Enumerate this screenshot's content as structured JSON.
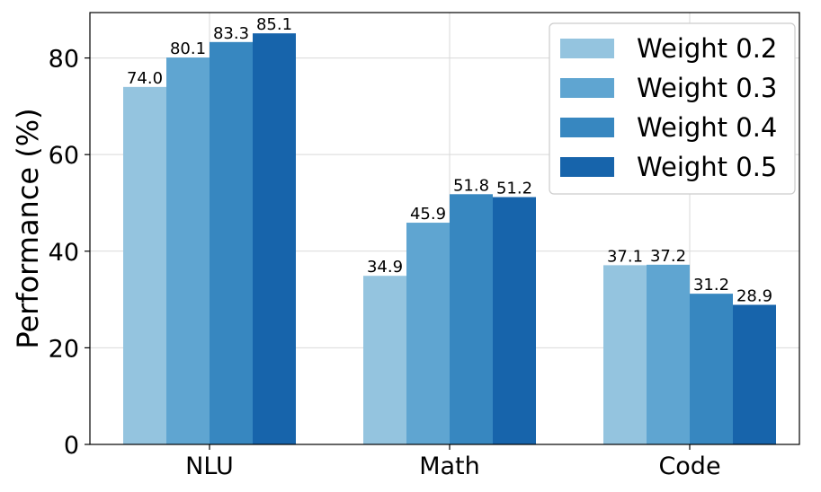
{
  "chart_data": {
    "type": "bar",
    "title": "",
    "xlabel": "",
    "ylabel": "Performance (%)",
    "categories": [
      "NLU",
      "Math",
      "Code"
    ],
    "series": [
      {
        "name": "Weight 0.2",
        "color": "#94c4df",
        "values": [
          74.0,
          34.9,
          37.1
        ],
        "labels": [
          "74.0",
          "34.9",
          "37.1"
        ]
      },
      {
        "name": "Weight 0.3",
        "color": "#5fa5d1",
        "values": [
          80.1,
          45.9,
          37.2
        ],
        "labels": [
          "80.1",
          "45.9",
          "37.2"
        ]
      },
      {
        "name": "Weight 0.4",
        "color": "#3787c0",
        "values": [
          83.3,
          51.8,
          31.2
        ],
        "labels": [
          "83.3",
          "51.8",
          "31.2"
        ]
      },
      {
        "name": "Weight 0.5",
        "color": "#1764ab",
        "values": [
          85.1,
          51.2,
          28.9
        ],
        "labels": [
          "85.1",
          "51.2",
          "28.9"
        ]
      }
    ],
    "ylim": [
      0,
      89.4
    ],
    "yticks": [
      0,
      20,
      40,
      60,
      80
    ],
    "ytick_labels": [
      "0",
      "20",
      "40",
      "60",
      "80"
    ],
    "grid": true,
    "legend_position": "top-right"
  }
}
